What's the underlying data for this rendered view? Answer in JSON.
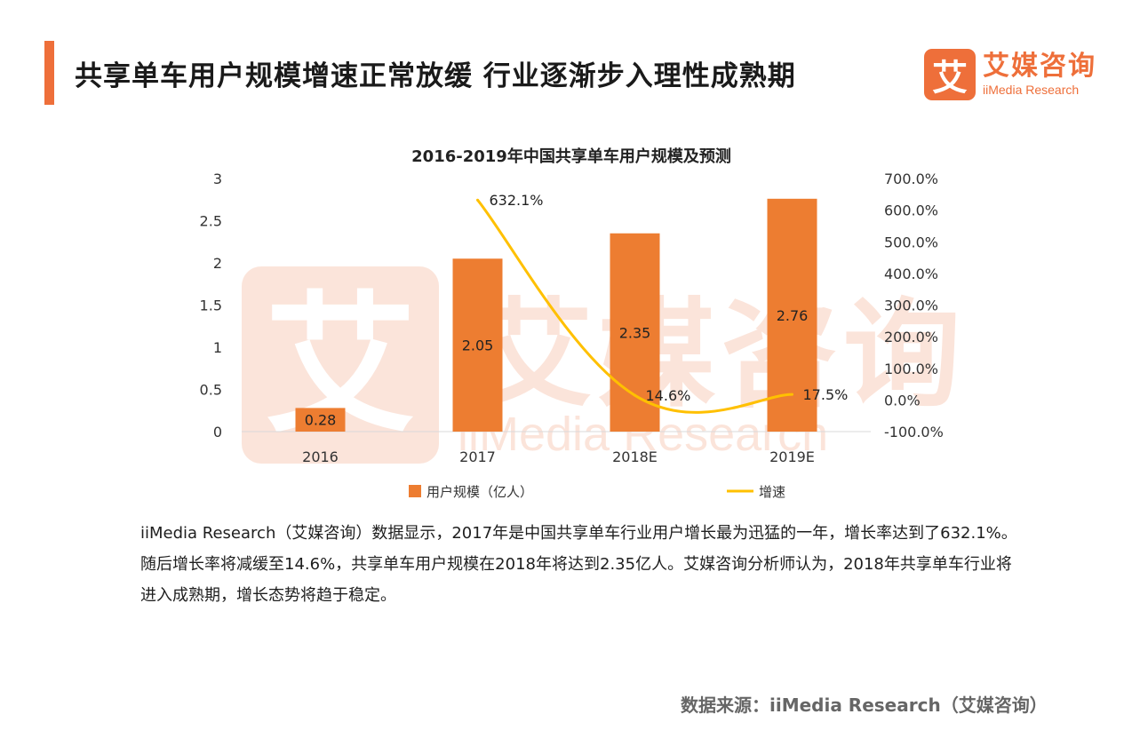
{
  "header": {
    "title": "共享单车用户规模增速正常放缓 行业逐渐步入理性成熟期",
    "logo_glyph": "艾",
    "logo_cn": "艾媒咨询",
    "logo_en": "iiMedia Research"
  },
  "watermark": {
    "glyph": "艾",
    "cn": "艾媒咨询",
    "en": "iiMedia Research"
  },
  "chart_data": {
    "type": "bar+line",
    "title": "2016-2019年中国共享单车用户规模及预测",
    "categories": [
      "2016",
      "2017",
      "2018E",
      "2019E"
    ],
    "series": [
      {
        "name": "用户规模（亿人）",
        "type": "bar",
        "axis": "left",
        "values": [
          0.28,
          2.05,
          2.35,
          2.76
        ],
        "labels": [
          "0.28",
          "2.05",
          "2.35",
          "2.76"
        ],
        "color": "#ed7d31"
      },
      {
        "name": "增速",
        "type": "line",
        "axis": "right",
        "values": [
          null,
          632.1,
          14.6,
          17.5
        ],
        "labels": [
          null,
          "632.1%",
          "14.6%",
          "17.5%"
        ],
        "color": "#ffc000"
      }
    ],
    "y_left": {
      "min": 0,
      "max": 3,
      "ticks": [
        "0",
        "0.5",
        "1",
        "1.5",
        "2",
        "2.5",
        "3"
      ]
    },
    "y_right": {
      "min": -100,
      "max": 700,
      "ticks": [
        "-100.0%",
        "0.0%",
        "100.0%",
        "200.0%",
        "300.0%",
        "400.0%",
        "500.0%",
        "600.0%",
        "700.0%"
      ]
    },
    "legend_position": "bottom"
  },
  "description": "iiMedia Research（艾媒咨询）数据显示，2017年是中国共享单车行业用户增长最为迅猛的一年，增长率达到了632.1%。随后增长率将减缓至14.6%，共享单车用户规模在2018年将达到2.35亿人。艾媒咨询分析师认为，2018年共享单车行业将进入成熟期，增长态势将趋于稳定。",
  "source": "数据来源：iiMedia Research（艾媒咨询）",
  "colors": {
    "accent": "#ee6f3a",
    "bar": "#ed7d31",
    "line": "#ffc000"
  }
}
